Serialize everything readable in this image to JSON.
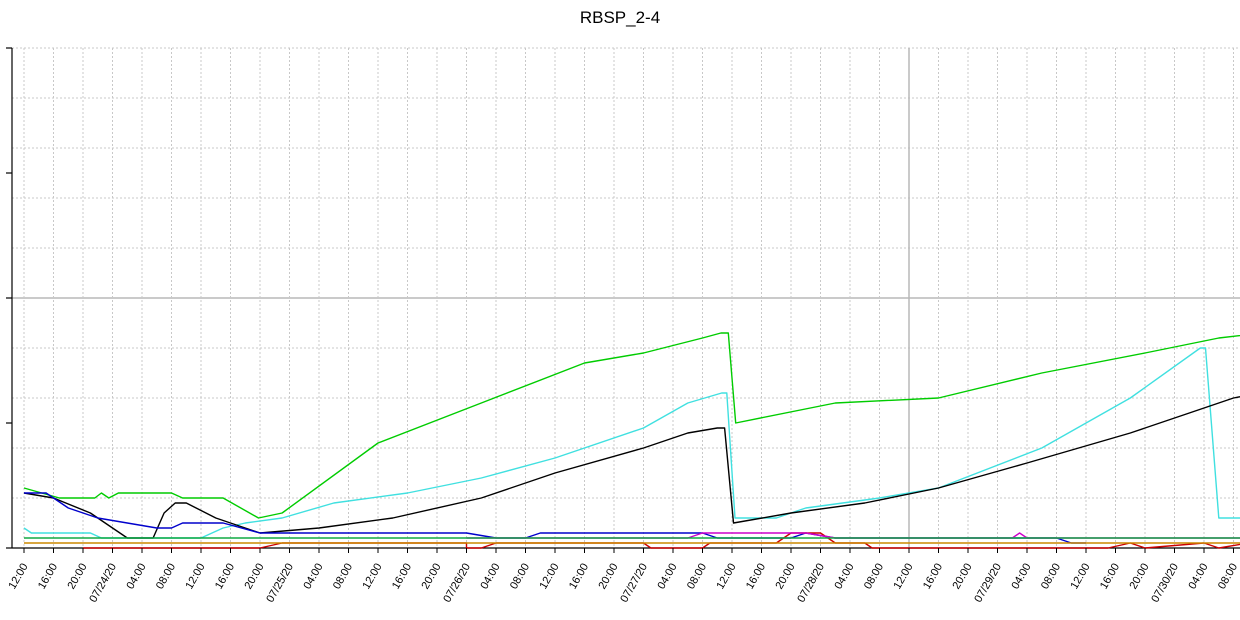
{
  "chart_data": {
    "type": "line",
    "title": "RBSP_2-4",
    "xlabel": "",
    "ylabel": "",
    "grid": true,
    "legend": "none",
    "y_ticks": [
      "",
      "",
      "",
      "",
      ""
    ],
    "x_ticks": [
      "12:00",
      "16:00",
      "20:00",
      "07/24/20",
      "04:00",
      "08:00",
      "12:00",
      "16:00",
      "20:00",
      "07/25/20",
      "04:00",
      "08:00",
      "12:00",
      "16:00",
      "20:00",
      "07/26/20",
      "04:00",
      "08:00",
      "12:00",
      "16:00",
      "20:00",
      "07/27/20",
      "04:00",
      "08:00",
      "12:00",
      "16:00",
      "20:00",
      "07/28/20",
      "04:00",
      "08:00",
      "12:00",
      "16:00",
      "20:00",
      "07/29/20",
      "04:00",
      "08:00",
      "12:00",
      "16:00",
      "20:00",
      "07/30/20",
      "04:00",
      "08:00"
    ],
    "x_unit": "hours since first tick (12:00, 07/23/20)",
    "ylim": [
      0,
      100
    ],
    "series": [
      {
        "color": "#00cc00",
        "points": [
          [
            0,
            12
          ],
          [
            4.8,
            10
          ],
          [
            9.6,
            10
          ],
          [
            10.5,
            11
          ],
          [
            11.5,
            10
          ],
          [
            12.8,
            11
          ],
          [
            20,
            11
          ],
          [
            21.5,
            10
          ],
          [
            27,
            10
          ],
          [
            31.8,
            6
          ],
          [
            35,
            7
          ],
          [
            48,
            21
          ],
          [
            62,
            29
          ],
          [
            76,
            37
          ],
          [
            84,
            39
          ],
          [
            92,
            42
          ],
          [
            94.5,
            43
          ],
          [
            95.5,
            43
          ],
          [
            96.5,
            25
          ],
          [
            110,
            29
          ],
          [
            124,
            30
          ],
          [
            138,
            35
          ],
          [
            152,
            39
          ],
          [
            162,
            42
          ],
          [
            168,
            43
          ],
          [
            168.7,
            43
          ],
          [
            169.5,
            14
          ],
          [
            171,
            8
          ],
          [
            172,
            7
          ],
          [
            175,
            13
          ],
          [
            180,
            14
          ]
        ]
      },
      {
        "color": "#40e0e0",
        "points": [
          [
            0,
            4
          ],
          [
            1,
            3
          ],
          [
            5,
            3
          ],
          [
            9,
            3
          ],
          [
            10.5,
            2
          ],
          [
            22,
            2
          ],
          [
            24,
            2
          ],
          [
            27,
            4
          ],
          [
            30,
            5
          ],
          [
            35,
            6
          ],
          [
            42,
            9
          ],
          [
            52,
            11
          ],
          [
            62,
            14
          ],
          [
            72,
            18
          ],
          [
            84,
            24
          ],
          [
            90,
            29
          ],
          [
            94.6,
            31
          ],
          [
            95.3,
            31
          ],
          [
            96.4,
            6
          ],
          [
            102,
            6
          ],
          [
            106,
            8
          ],
          [
            116,
            10
          ],
          [
            124,
            12
          ],
          [
            138,
            20
          ],
          [
            150,
            30
          ],
          [
            159.5,
            40
          ],
          [
            160.2,
            40
          ],
          [
            162,
            6
          ],
          [
            166,
            6
          ],
          [
            172,
            7
          ],
          [
            178,
            7
          ],
          [
            180,
            5
          ]
        ]
      },
      {
        "color": "#000000",
        "points": [
          [
            0,
            11
          ],
          [
            4,
            10
          ],
          [
            9,
            7
          ],
          [
            14,
            2
          ],
          [
            17.5,
            2
          ],
          [
            19,
            7
          ],
          [
            20.5,
            9
          ],
          [
            22,
            9
          ],
          [
            26,
            6
          ],
          [
            32,
            3
          ],
          [
            40,
            4
          ],
          [
            50,
            6
          ],
          [
            62,
            10
          ],
          [
            72,
            15
          ],
          [
            84,
            20
          ],
          [
            90,
            23
          ],
          [
            94,
            24
          ],
          [
            95,
            24
          ],
          [
            96.2,
            5
          ],
          [
            104,
            7
          ],
          [
            114,
            9
          ],
          [
            124,
            12
          ],
          [
            136,
            17
          ],
          [
            150,
            23
          ],
          [
            158,
            27
          ],
          [
            164,
            30
          ],
          [
            167.5,
            31
          ],
          [
            168.5,
            31
          ],
          [
            169,
            5
          ],
          [
            171,
            4
          ],
          [
            174,
            5
          ],
          [
            180,
            5
          ]
        ]
      },
      {
        "color": "#0000cc",
        "points": [
          [
            0,
            11
          ],
          [
            3,
            11
          ],
          [
            6,
            8
          ],
          [
            10,
            6
          ],
          [
            14,
            5
          ],
          [
            18,
            4
          ],
          [
            20,
            4
          ],
          [
            21.5,
            5
          ],
          [
            27,
            5
          ],
          [
            32,
            3
          ],
          [
            40,
            3
          ],
          [
            60,
            3
          ],
          [
            64,
            2
          ],
          [
            68,
            2
          ],
          [
            70,
            3
          ],
          [
            92,
            3
          ],
          [
            94,
            2
          ],
          [
            104,
            2
          ],
          [
            106,
            3
          ],
          [
            110,
            2
          ],
          [
            140,
            2
          ],
          [
            142,
            1
          ],
          [
            144,
            1
          ]
        ]
      },
      {
        "color": "#cc0000",
        "points": [
          [
            8,
            0
          ],
          [
            16,
            0
          ],
          [
            24,
            0
          ],
          [
            32,
            0
          ],
          [
            35,
            1
          ],
          [
            60,
            1
          ],
          [
            60,
            0
          ],
          [
            62,
            0
          ],
          [
            64,
            1
          ],
          [
            84,
            1
          ],
          [
            85,
            0
          ],
          [
            92,
            0
          ],
          [
            93,
            1
          ],
          [
            102,
            1
          ],
          [
            104,
            3
          ],
          [
            108,
            3
          ],
          [
            110,
            1
          ],
          [
            114,
            1
          ],
          [
            115,
            0
          ],
          [
            142,
            0
          ],
          [
            147,
            0
          ],
          [
            150,
            1
          ],
          [
            152,
            0
          ],
          [
            160,
            1
          ],
          [
            162,
            0
          ],
          [
            166,
            1
          ],
          [
            168,
            0
          ],
          [
            172,
            0
          ]
        ]
      },
      {
        "color": "#cc00cc",
        "points": [
          [
            60,
            2
          ],
          [
            90,
            2
          ],
          [
            92,
            3
          ],
          [
            106,
            3
          ],
          [
            110,
            2
          ],
          [
            120,
            2
          ],
          [
            134,
            2
          ],
          [
            135,
            3
          ],
          [
            136,
            2
          ],
          [
            160,
            2
          ],
          [
            168,
            2
          ],
          [
            170,
            0
          ],
          [
            180,
            0
          ]
        ]
      },
      {
        "color": "#cc8800",
        "points": [
          [
            0,
            1
          ],
          [
            60,
            1
          ],
          [
            120,
            1
          ],
          [
            180,
            1
          ]
        ]
      },
      {
        "color": "#11aa44",
        "points": [
          [
            0,
            2
          ],
          [
            60,
            2
          ],
          [
            140,
            2
          ],
          [
            150,
            2
          ],
          [
            180,
            2
          ]
        ]
      }
    ]
  }
}
